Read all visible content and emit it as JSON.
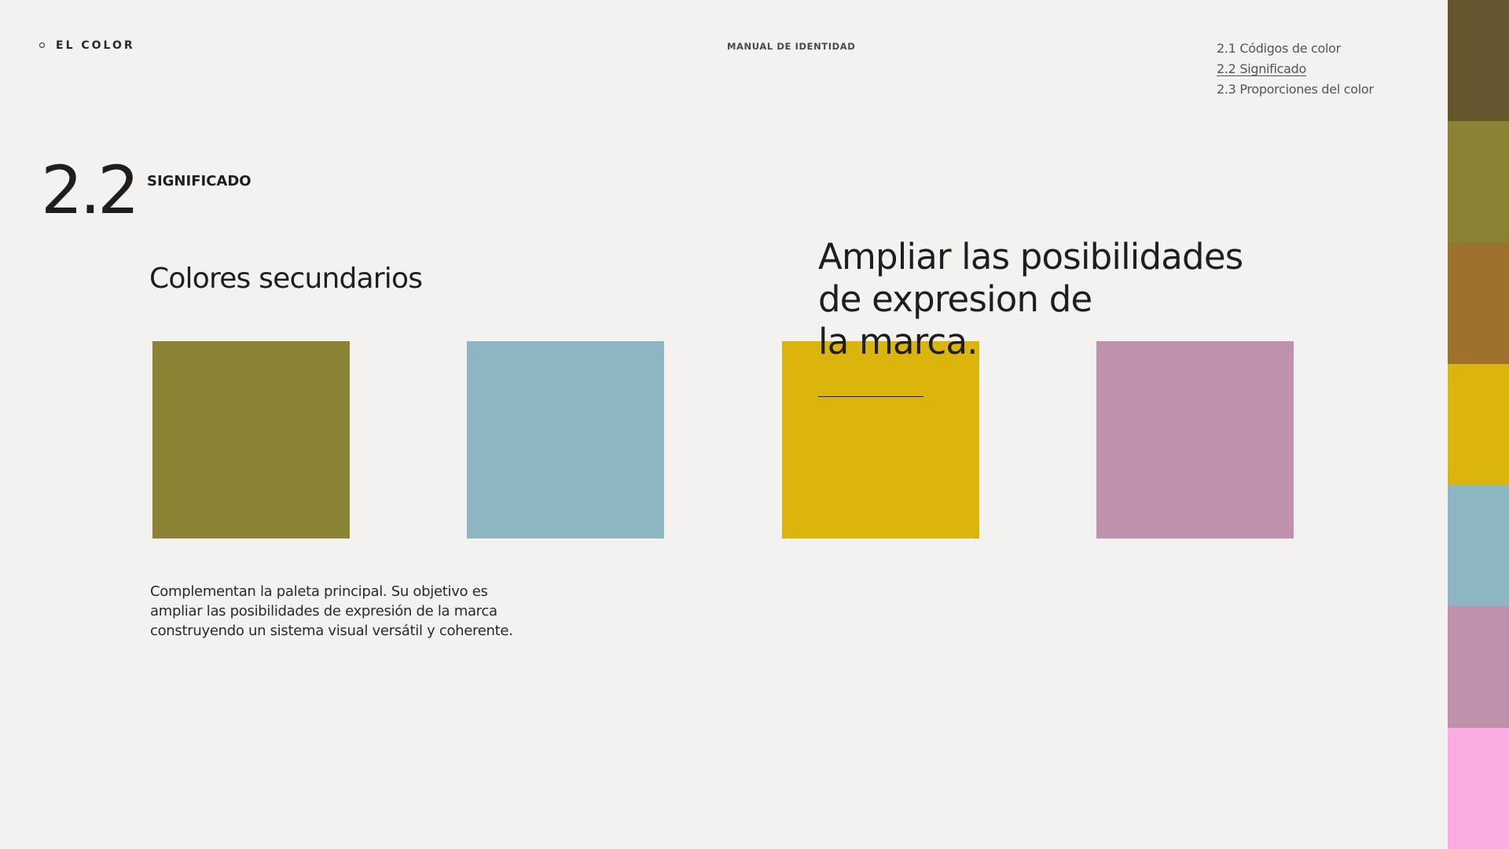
{
  "header": {
    "section_label": "EL COLOR",
    "doc_title": "MANUAL DE IDENTIDAD",
    "subnav": [
      {
        "label": "2.1 Códigos de color",
        "active": false
      },
      {
        "label": "2.2 Significado",
        "active": true
      },
      {
        "label": "2.3 Proporciones del color",
        "active": false
      }
    ]
  },
  "section": {
    "number": "2.2",
    "name": "SIGNIFICADO"
  },
  "main": {
    "heading": "Colores secundarios",
    "swatches": [
      "#8A8334",
      "#8DB6C3",
      "#DBB40C",
      "#BE91AD"
    ],
    "quote_lines": [
      "Ampliar las posibilidades",
      "de expresion de",
      "la marca."
    ],
    "description_lines": [
      "Complementan la paleta principal. Su objetivo es",
      "ampliar las posibilidades de expresión de la marca",
      "construyendo un sistema visual versátil y coherente."
    ]
  },
  "palette_strip": [
    "#61572A",
    "#8A8334",
    "#9C722D",
    "#DBB40C",
    "#8DB6C3",
    "#BE91AD",
    "#FBADE1"
  ],
  "colors": {
    "background": "#F4F1EE",
    "text": "#1E1E1E"
  }
}
